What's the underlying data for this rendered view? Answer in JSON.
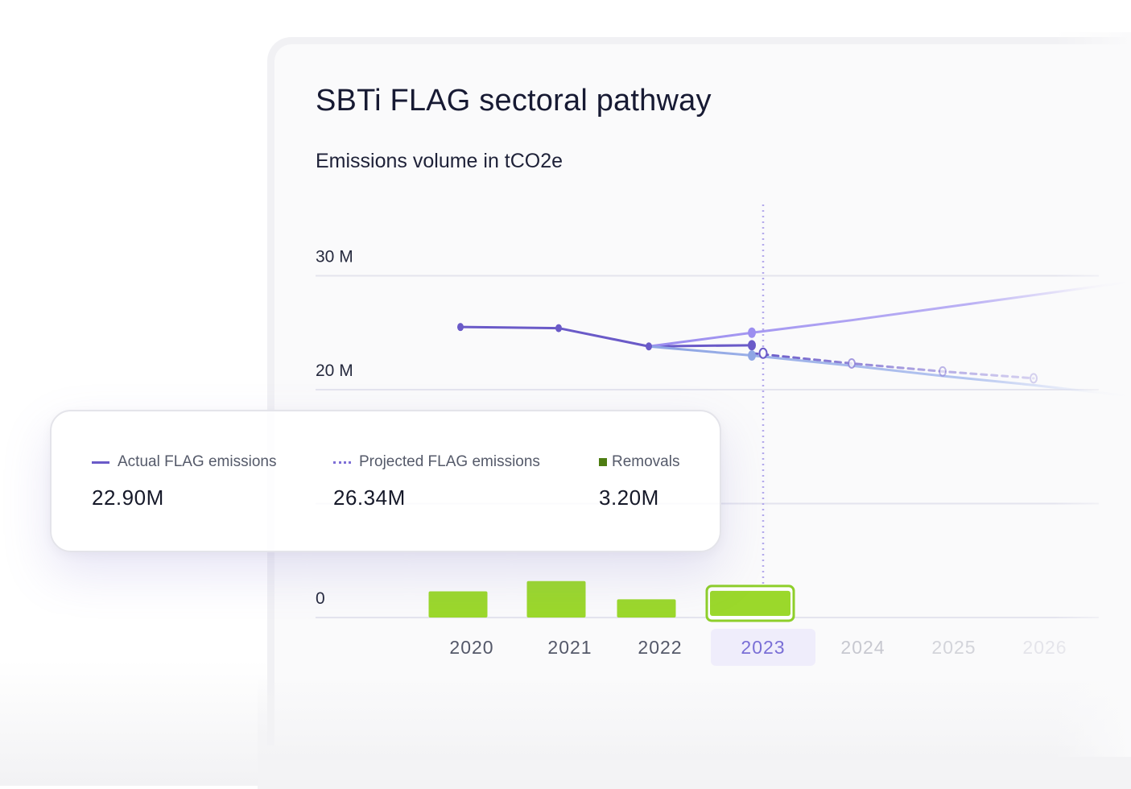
{
  "title": "SBTi FLAG sectoral pathway",
  "subtitle": "Emissions volume in tCO2e",
  "legend": {
    "actual": {
      "label": "Actual FLAG emissions",
      "value": "22.90M"
    },
    "projected": {
      "label": "Projected FLAG emissions",
      "value": "26.34M"
    },
    "removals": {
      "label": "Removals",
      "value": "3.20M"
    }
  },
  "colors": {
    "actual": "#6a5ac8",
    "pathway_upper": "#9c8ef0",
    "pathway_lower": "#8fa6e4",
    "removals": "#9bd82b",
    "removals_legend": "#4e7d12",
    "highlight": "#c8c0f2"
  },
  "chart_data": {
    "type": "line",
    "title": "SBTi FLAG sectoral pathway",
    "ylabel": "Emissions volume in tCO2e",
    "x": [
      "2020",
      "2021",
      "2022",
      "2023",
      "2024",
      "2025",
      "2026"
    ],
    "y_ticks": [
      "0",
      "20 M",
      "30 M"
    ],
    "ylim": [
      0,
      30000000
    ],
    "highlighted_x": "2023",
    "series": [
      {
        "name": "Actual FLAG emissions",
        "style": "solid",
        "x": [
          "2020",
          "2021",
          "2022",
          "2023"
        ],
        "values": [
          25500000,
          25400000,
          23800000,
          23900000
        ]
      },
      {
        "name": "Projected FLAG emissions",
        "style": "dotted",
        "x": [
          "2023",
          "2024",
          "2025",
          "2026"
        ],
        "values": [
          23200000,
          22300000,
          21600000,
          21000000
        ]
      },
      {
        "style": "gradient-solid",
        "x": [
          "2022",
          "2023",
          "2024",
          "2025",
          "2026",
          "2027"
        ],
        "values": [
          23800000,
          25000000,
          26100000,
          27200000,
          28300000,
          29400000
        ]
      },
      {
        "style": "gradient-solid",
        "x": [
          "2022",
          "2023",
          "2024",
          "2025",
          "2026",
          "2027"
        ],
        "values": [
          23800000,
          23000000,
          22100000,
          21200000,
          20400000,
          19500000
        ]
      },
      {
        "name": "Removals",
        "style": "bar",
        "x": [
          "2020",
          "2021",
          "2022",
          "2023"
        ],
        "values": [
          2300000,
          3200000,
          1600000,
          2200000
        ]
      }
    ]
  }
}
